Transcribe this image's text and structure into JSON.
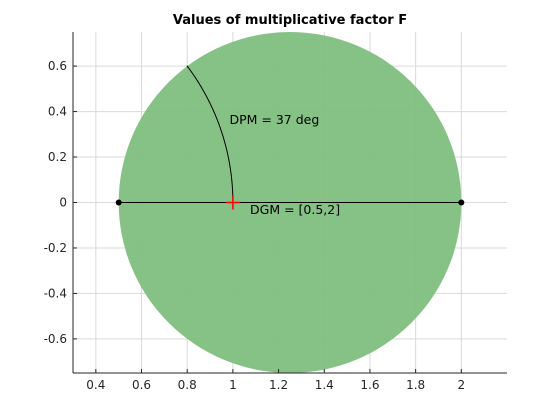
{
  "chart_data": {
    "type": "scatter",
    "title": "Values of multiplicative factor F",
    "xlabel": "",
    "ylabel": "",
    "xlim": [
      0.3,
      2.2
    ],
    "ylim": [
      -0.75,
      0.75
    ],
    "xticks": [
      0.4,
      0.6,
      0.8,
      1,
      1.2,
      1.4,
      1.6,
      1.8,
      2
    ],
    "yticks": [
      -0.6,
      -0.4,
      -0.2,
      0,
      0.2,
      0.4,
      0.6
    ],
    "xtick_labels": [
      "0.4",
      "0.6",
      "0.8",
      "1",
      "1.2",
      "1.4",
      "1.6",
      "1.8",
      "2"
    ],
    "ytick_labels": [
      "-0.6",
      "-0.4",
      "-0.2",
      "0",
      "0.2",
      "0.4",
      "0.6"
    ],
    "grid": true,
    "disk": {
      "center": [
        1.25,
        0
      ],
      "radius": 0.75,
      "color": "#7fbf7f"
    },
    "gain_segment": {
      "x": [
        0.5,
        2
      ],
      "y": [
        0,
        0
      ],
      "color": "#000000"
    },
    "phase_arc": {
      "radius": 1,
      "start_deg": 0,
      "end_deg": 37,
      "color": "#000000"
    },
    "markers": [
      {
        "x": 1,
        "y": 0,
        "symbol": "+",
        "color": "#ff0000"
      }
    ],
    "endpoints": [
      {
        "x": 0.5,
        "y": 0
      },
      {
        "x": 2,
        "y": 0
      }
    ],
    "annotations": [
      {
        "text": "DPM = 37 deg",
        "x": 0.985,
        "y": 0.345
      },
      {
        "text": "DGM = [0.5,2]",
        "x": 1.075,
        "y": -0.05
      }
    ]
  }
}
